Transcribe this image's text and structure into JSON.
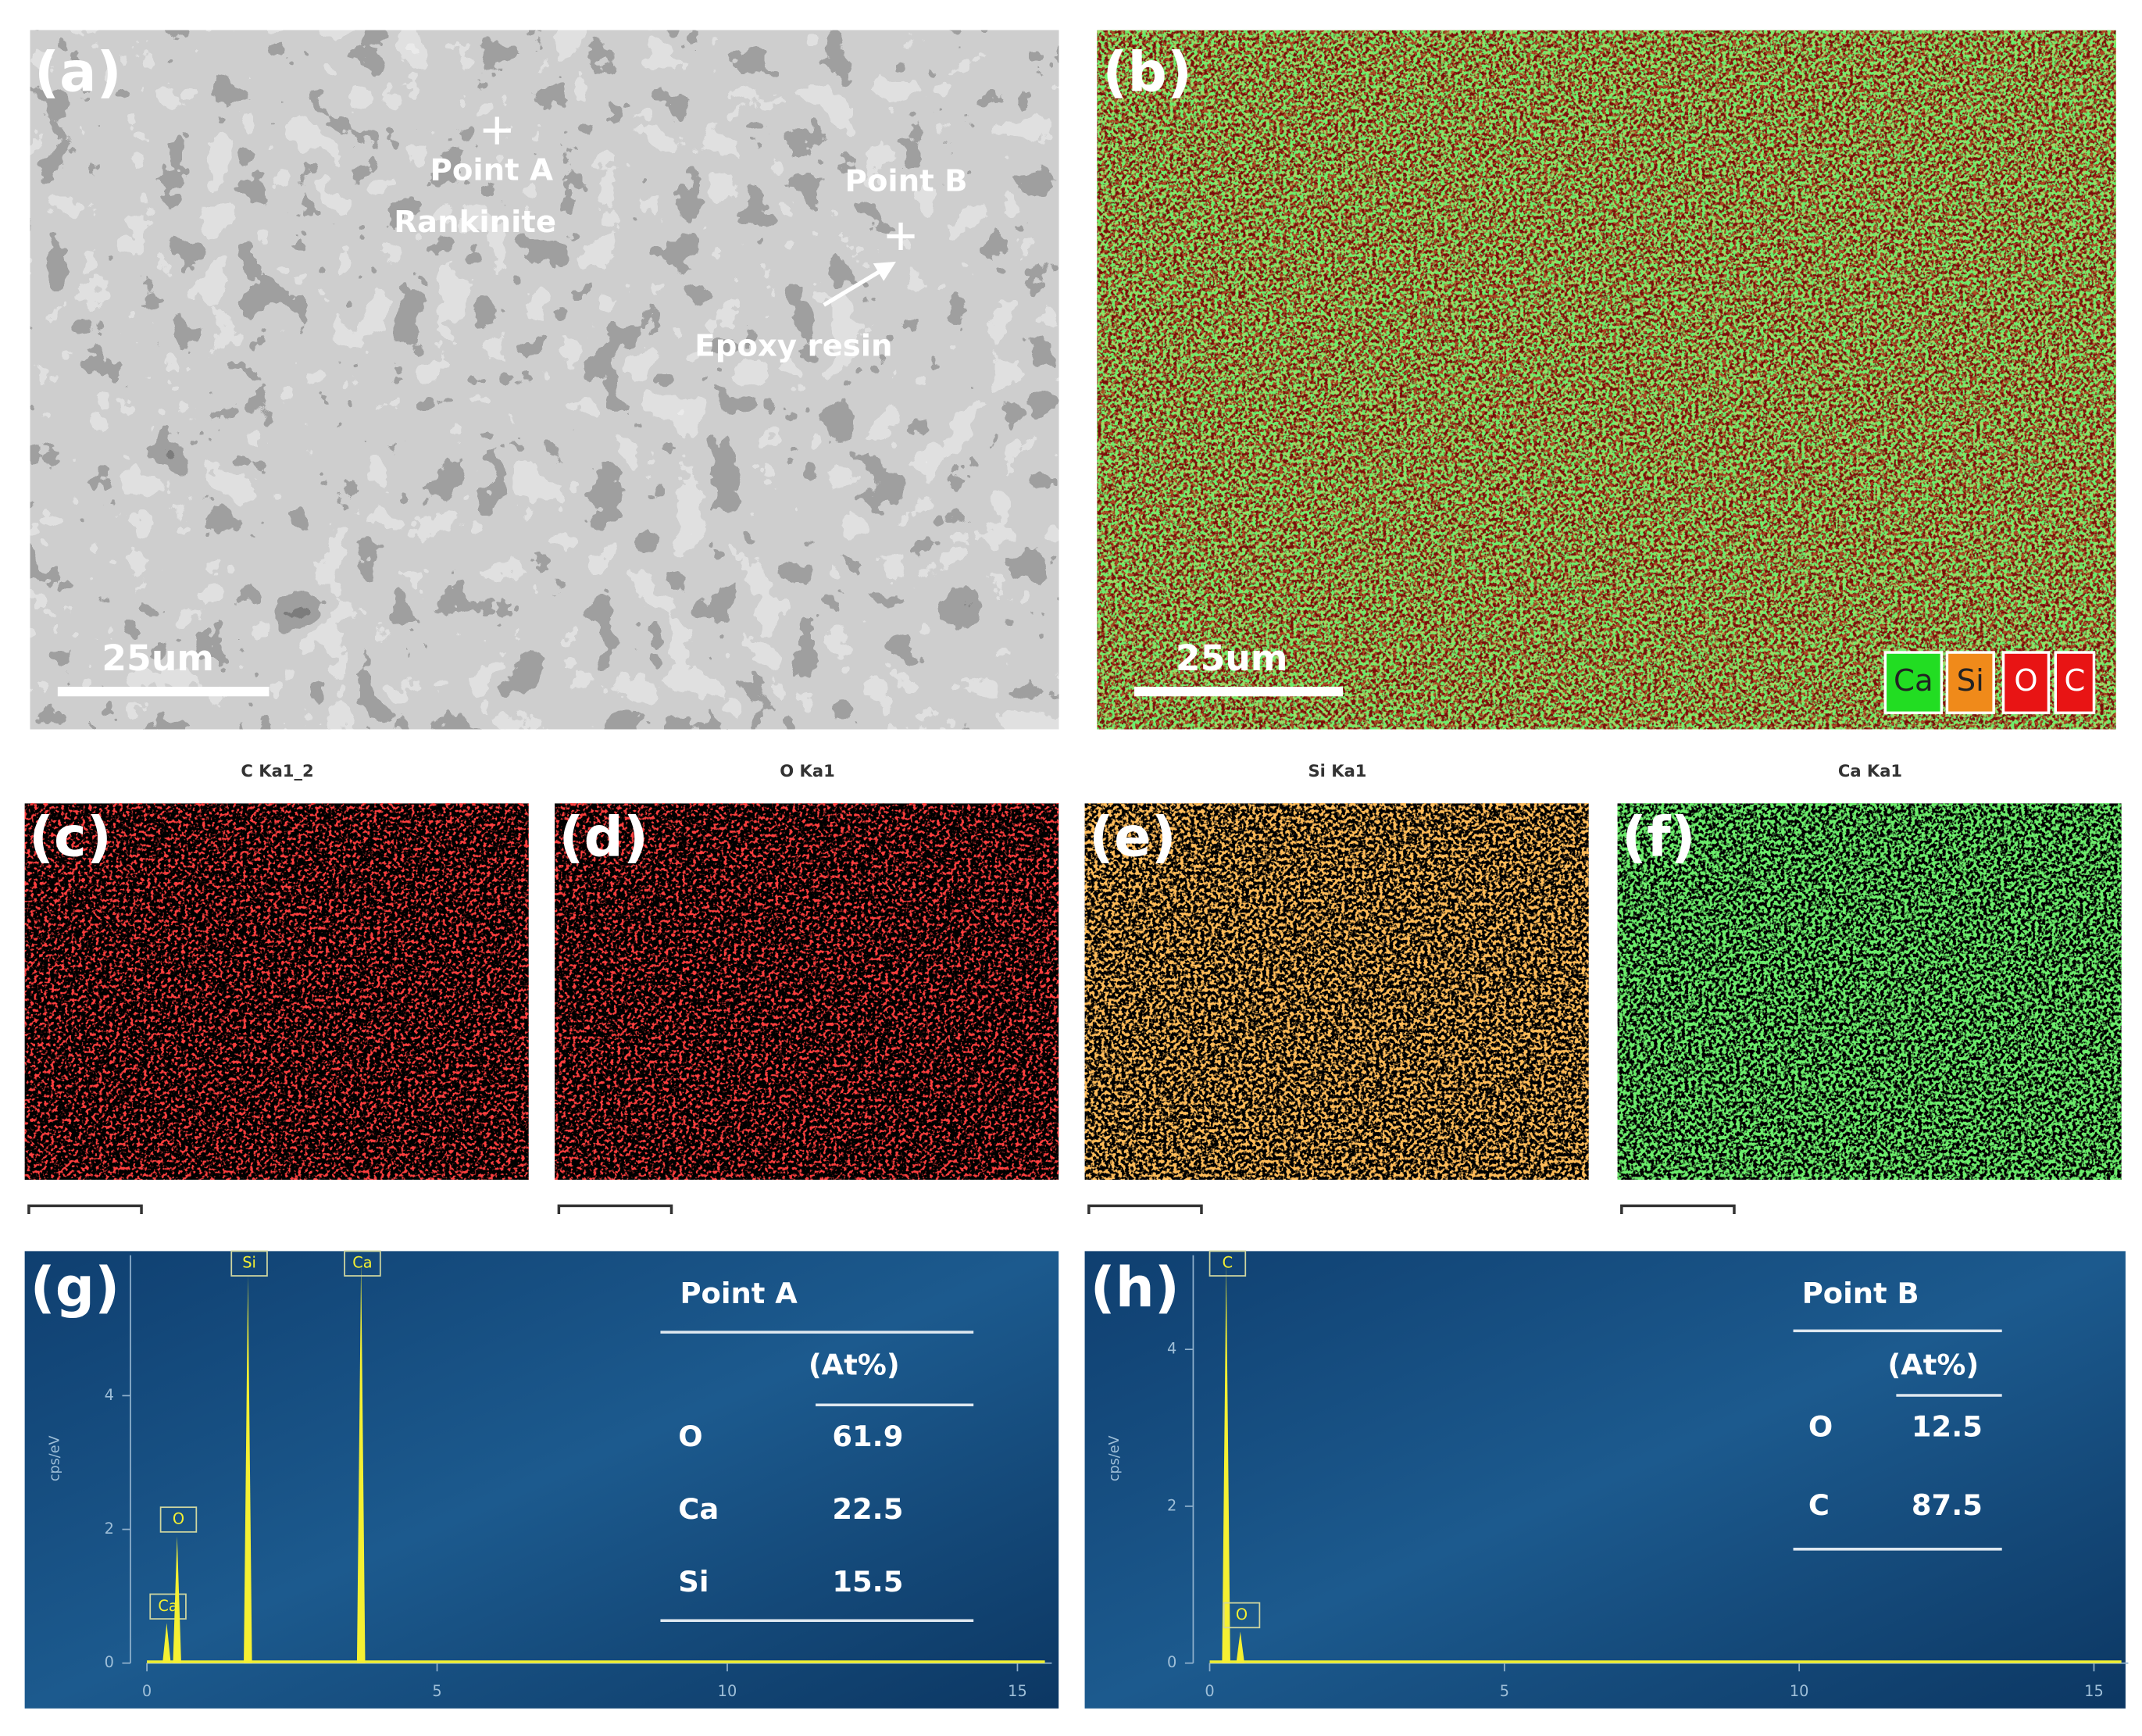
{
  "panel_a": {
    "label": "(a)",
    "point_a": "Point A",
    "point_a_phase": "Rankinite",
    "point_b": "Point B",
    "point_b_phase": "Epoxy resin",
    "scale_bar": "25um"
  },
  "panel_b": {
    "label": "(b)",
    "scale_bar": "25um",
    "legend": [
      "Ca",
      "Si",
      "O",
      "C"
    ]
  },
  "maps": [
    {
      "label": "(c)",
      "title": "C Ka1_2"
    },
    {
      "label": "(d)",
      "title": "O Ka1"
    },
    {
      "label": "(e)",
      "title": "Si Ka1"
    },
    {
      "label": "(f)",
      "title": "Ca Ka1"
    }
  ],
  "spectra": [
    {
      "label": "(g)",
      "ylabel": "cps/eV",
      "xlim": [
        0,
        15
      ],
      "ylim": [
        0,
        6.1
      ],
      "xticks": [
        0,
        5,
        10,
        15
      ],
      "yticks": [
        0,
        2,
        4
      ],
      "peaks": [
        {
          "label": "Ca",
          "energy": 0.34,
          "height": 0.6
        },
        {
          "label": "O",
          "energy": 0.52,
          "height": 1.9
        },
        {
          "label": "Si",
          "energy": 1.74,
          "height": 5.8
        },
        {
          "label": "Ca",
          "energy": 3.69,
          "height": 6.0
        }
      ],
      "table": {
        "title": "Point A",
        "unit": "(At%)",
        "rows": [
          [
            "O",
            61.9
          ],
          [
            "Ca",
            22.5
          ],
          [
            "Si",
            15.5
          ]
        ]
      }
    },
    {
      "label": "(h)",
      "ylabel": "cps/eV",
      "xlim": [
        0,
        15
      ],
      "ylim": [
        0,
        5.2
      ],
      "xticks": [
        0,
        5,
        10,
        15
      ],
      "yticks": [
        0,
        2,
        4
      ],
      "peaks": [
        {
          "label": "C",
          "energy": 0.28,
          "height": 5.1
        },
        {
          "label": "O",
          "energy": 0.52,
          "height": 0.4
        }
      ],
      "table": {
        "title": "Point B",
        "unit": "(At%)",
        "rows": [
          [
            "O",
            12.5
          ],
          [
            "C",
            87.5
          ]
        ]
      }
    }
  ]
}
